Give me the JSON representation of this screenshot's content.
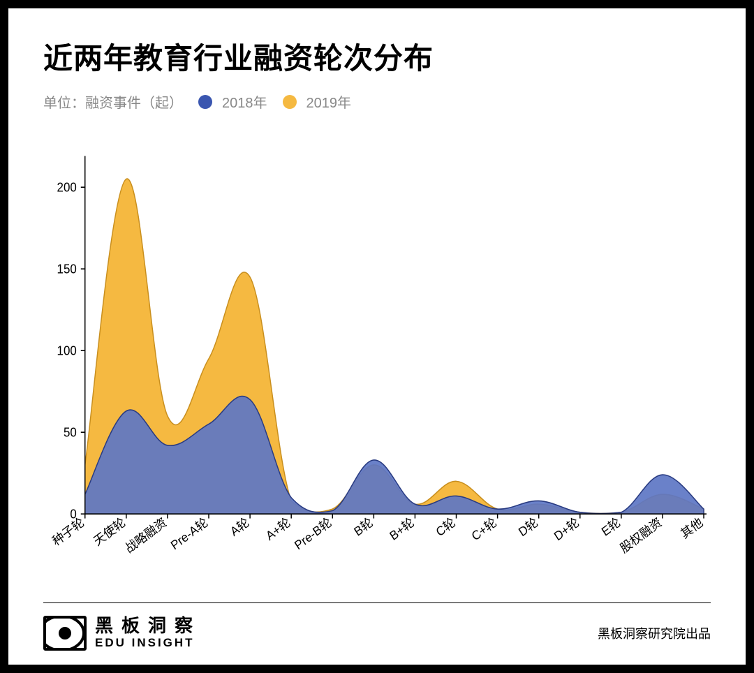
{
  "title": "近两年教育行业融资轮次分布",
  "unit_label": "单位：融资事件（起）",
  "legend": {
    "series1": {
      "label": "2018年",
      "color": "#3a56b0"
    },
    "series2": {
      "label": "2019年",
      "color": "#f5b941"
    }
  },
  "chart": {
    "type": "area",
    "background_color": "#ffffff",
    "axis_color": "#000000",
    "axis_width": 1.5,
    "label_color": "#000000",
    "label_fontsize": 17,
    "y": {
      "min": 0,
      "max": 210,
      "ticks": [
        0,
        50,
        100,
        150,
        200
      ],
      "tick_labels": [
        "0",
        "50",
        "100",
        "150",
        "200"
      ]
    },
    "x": {
      "categories": [
        "种子轮",
        "天使轮",
        "战略融资",
        "Pre-A轮",
        "A轮",
        "A+轮",
        "Pre-B轮",
        "B轮",
        "B+轮",
        "C轮",
        "C+轮",
        "D轮",
        "D+轮",
        "E轮",
        "股权融资",
        "其他"
      ],
      "label_rotation_deg": -35
    },
    "series": [
      {
        "name": "2019年",
        "fill": "#f5b941",
        "stroke": "#c98f1e",
        "stroke_width": 1.5,
        "opacity": 1.0,
        "z": 1,
        "values": [
          30,
          205,
          60,
          95,
          145,
          8,
          3,
          30,
          6,
          20,
          3,
          6,
          1,
          1,
          12,
          3
        ]
      },
      {
        "name": "2018年",
        "fill": "#5d76c4",
        "stroke": "#2a3c82",
        "stroke_width": 1.5,
        "opacity": 0.92,
        "z": 2,
        "values": [
          12,
          63,
          42,
          55,
          70,
          10,
          2,
          33,
          6,
          11,
          3,
          8,
          1,
          1,
          24,
          3
        ]
      }
    ]
  },
  "footer": {
    "logo_cn": "黑板洞察",
    "logo_en": "EDU INSIGHT",
    "credit": "黑板洞察研究院出品"
  }
}
